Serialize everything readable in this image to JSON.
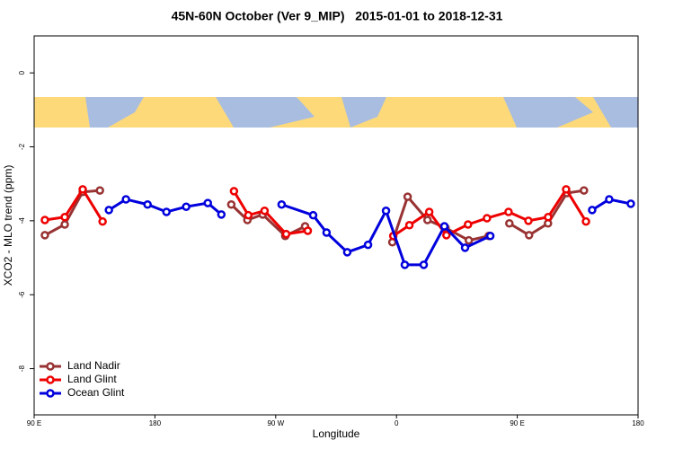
{
  "chart_data": {
    "type": "line",
    "title": "45N-60N October (Ver 9_MIP)   2015-01-01 to 2018-12-31",
    "x_label": "Longitude",
    "y_label": "XCO2 - MLO trend (ppm)",
    "xlim": [
      90,
      540
    ],
    "xticks": [
      {
        "value": 90,
        "label": "90 E"
      },
      {
        "value": 180,
        "label": "180"
      },
      {
        "value": 270,
        "label": "90 W"
      },
      {
        "value": 360,
        "label": "0"
      },
      {
        "value": 450,
        "label": "90 E"
      },
      {
        "value": 540,
        "label": "180"
      }
    ],
    "ylim": [
      -9.25,
      1
    ],
    "yticks": [
      0,
      -2,
      -4,
      -6,
      -8
    ],
    "legend": "bottom-left",
    "series": [
      {
        "name": "Land Nadir",
        "color": "#993333",
        "x": [
          98.0,
          112.8,
          126.2,
          139.0,
          null,
          236.9,
          248.9,
          260.3,
          277.1,
          291.9,
          null,
          356.9,
          368.3,
          383.1,
          396.5,
          413.9,
          428.7,
          null,
          444.1,
          458.8,
          472.9,
          487.0,
          499.7
        ],
        "values": [
          -4.39,
          -4.1,
          -3.22,
          -3.18,
          null,
          -3.56,
          -3.98,
          -3.83,
          -4.41,
          -4.15,
          null,
          -4.58,
          -3.35,
          -3.98,
          -4.19,
          -4.53,
          -4.41,
          null,
          -4.07,
          -4.39,
          -4.07,
          -3.25,
          -3.18
        ]
      },
      {
        "name": "Land Glint",
        "color": "#ee0000",
        "x": [
          98.0,
          112.8,
          126.2,
          141.0,
          null,
          238.9,
          249.6,
          261.7,
          277.8,
          293.9,
          null,
          357.6,
          369.6,
          384.4,
          397.2,
          413.3,
          427.4,
          443.5,
          458.3,
          473.0,
          486.4,
          501.2
        ],
        "values": [
          -3.98,
          -3.9,
          -3.15,
          -4.02,
          null,
          -3.2,
          -3.85,
          -3.73,
          -4.36,
          -4.27,
          null,
          -4.41,
          -4.12,
          -3.76,
          -4.39,
          -4.1,
          -3.93,
          -3.76,
          -4.0,
          -3.9,
          -3.15,
          -4.02
        ]
      },
      {
        "name": "Ocean Glint",
        "color": "#0000dd",
        "x": [
          145.7,
          158.4,
          174.5,
          188.6,
          203.3,
          219.4,
          229.5,
          null,
          274.4,
          297.9,
          307.9,
          323.3,
          338.8,
          352.2,
          366.2,
          380.3,
          395.7,
          411.1,
          429.9,
          null,
          505.8,
          518.5,
          534.6
        ],
        "values": [
          -3.71,
          -3.42,
          -3.56,
          -3.76,
          -3.62,
          -3.52,
          -3.83,
          null,
          -3.56,
          -3.85,
          -4.32,
          -4.85,
          -4.65,
          -3.73,
          -5.19,
          -5.19,
          -4.15,
          -4.73,
          -4.41,
          null,
          -3.71,
          -3.42,
          -3.54
        ]
      }
    ]
  }
}
